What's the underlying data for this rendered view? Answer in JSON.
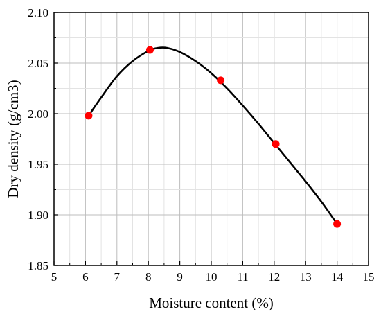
{
  "chart_data": {
    "type": "scatter",
    "xlabel": "Moisture content (%)",
    "ylabel": "Dry density (g/cm3)",
    "xlim": [
      5,
      15
    ],
    "ylim": [
      1.85,
      2.1
    ],
    "x_ticks": [
      5,
      6,
      7,
      8,
      9,
      10,
      11,
      12,
      13,
      14,
      15
    ],
    "y_ticks": [
      "1.85",
      "1.90",
      "1.95",
      "2.00",
      "2.05",
      "2.10"
    ],
    "grid": true,
    "colors": {
      "points": "#ff0000",
      "curve": "#000000",
      "grid": "#c8c8c8"
    },
    "series": [
      {
        "values": [
          {
            "x": 6.1,
            "y": 1.998
          },
          {
            "x": 8.05,
            "y": 2.063
          },
          {
            "x": 10.3,
            "y": 2.033
          },
          {
            "x": 12.05,
            "y": 1.97
          },
          {
            "x": 14.0,
            "y": 1.891
          }
        ]
      }
    ],
    "fit_curve": {
      "x": [
        6.1,
        6.5,
        7.0,
        7.5,
        8.0,
        8.3,
        8.6,
        9.0,
        9.5,
        10.0,
        10.5,
        11.0,
        11.5,
        12.0,
        12.5,
        13.0,
        13.5,
        14.0
      ],
      "y": [
        1.998,
        2.016,
        2.037,
        2.052,
        2.062,
        2.065,
        2.065,
        2.061,
        2.052,
        2.04,
        2.025,
        2.008,
        1.99,
        1.971,
        1.952,
        1.933,
        1.913,
        1.891
      ]
    }
  }
}
